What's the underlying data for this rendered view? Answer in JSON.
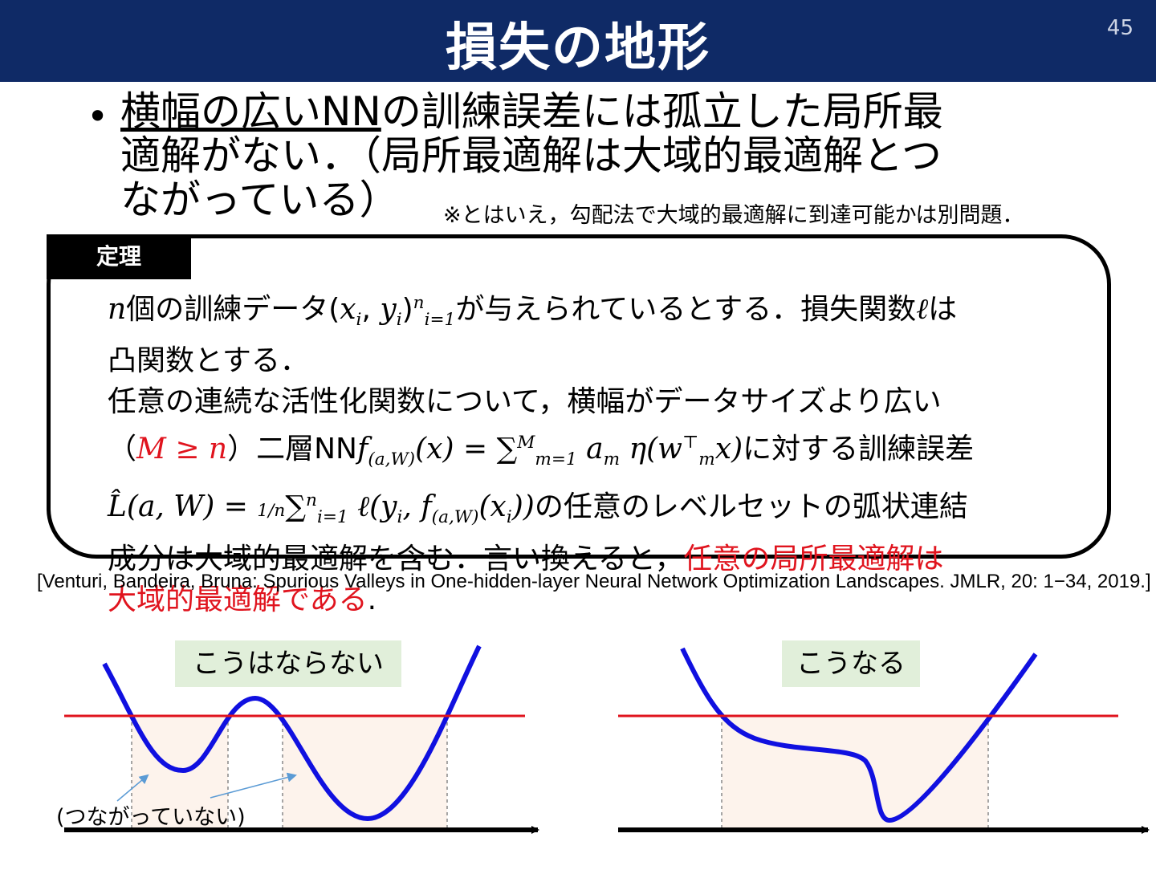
{
  "header": {
    "title": "損失の地形",
    "page_number": "45"
  },
  "bullet": {
    "dot": "•",
    "underlined": "横幅の広いNN",
    "rest_line1": "の訓練誤差には孤立した局所最",
    "line2": "適解がない．（局所最適解は大域的最適解とつ",
    "line3": "ながっている）"
  },
  "note": "※とはいえ，勾配法で大域的最適解に到達可能かは別問題．",
  "theorem": {
    "tab": "定理",
    "l1": {
      "n": "n",
      "t1": "個の訓練データ(",
      "x": "x",
      "i1": "i",
      "comma": ", ",
      "y": "y",
      "i2": "i",
      "close": ")",
      "sup": "n",
      "sub": "i=1",
      "t2": "が与えられているとする．損失関数",
      "ell": "ℓ",
      "t3": "は"
    },
    "l2": "凸関数とする．",
    "l3": "任意の連続な活性化関数について，横幅がデータサイズより広い",
    "l4": {
      "open": "（",
      "cond": "M ≥ n",
      "t1": "）二層NN",
      "f": "f",
      "fsub": "(a,W)",
      "eq": "(x) = ∑",
      "sumsup": "M",
      "sumsub": "m=1",
      "a": " a",
      "asub": "m",
      "eta": " η(w",
      "wsup": "⊤",
      "wsub": "m",
      "x": "x)",
      "t2": "に対する訓練誤差"
    },
    "l5": {
      "L": "L̂(a, W) = ",
      "frac": "1/n",
      "sum": "∑",
      "sup": "n",
      "sub": "i=1",
      "ell": " ℓ(y",
      "yi": "i",
      "f": ", f",
      "fsub": "(a,W)",
      "xi": "(x",
      "xisub": "i",
      "close": "))",
      "t": "の任意のレベルセットの弧状連結"
    },
    "l6": {
      "t": "成分は大域的最適解を含む．言い換えると，",
      "red": "任意の局所最適解は"
    },
    "l7": {
      "red": "大域的最適解である",
      "end": "."
    }
  },
  "citation": "[Venturi, Bandeira, Bruna: Spurious Valleys in One-hidden-layer Neural Network Optimization Landscapes. JMLR, 20: 1−34, 2019.]",
  "figures": {
    "left_label": "こうはならない",
    "right_label": "こうなる",
    "left_note": "(つながっていない)"
  },
  "colors": {
    "header_bg": "#0f2a66",
    "curve": "#1010e0",
    "level_line": "#e0141e",
    "label_bg": "#e1efda",
    "region_fill": "#fdf3ec",
    "arrow_note": "#5b9bd5"
  }
}
